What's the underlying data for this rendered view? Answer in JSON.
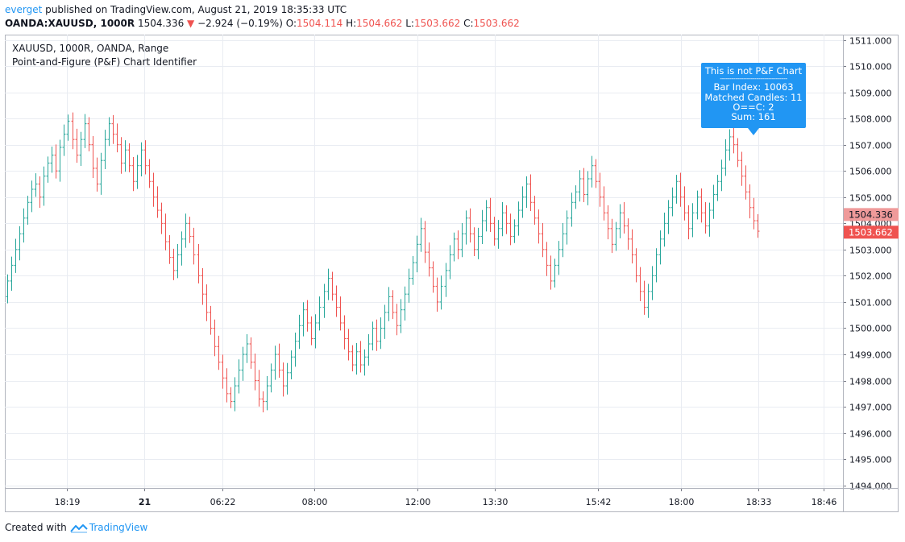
{
  "header": {
    "user": "everget",
    "published_text": " published on TradingView.com, August 21, 2019 18:35:33 UTC"
  },
  "ohlc": {
    "symbol": "OANDA:XAUUSD, 1000R",
    "last": "1504.336",
    "arrow": "▼",
    "change": "−2.924 (−0.19%)",
    "open_label": "O:",
    "open": "1504.114",
    "high_label": "H:",
    "high": "1504.662",
    "low_label": "L:",
    "low": "1503.662",
    "close_label": "C:",
    "close": "1503.662"
  },
  "chart_title": "XAUUSD, 1000R, OANDA, Range",
  "chart_subtitle": "Point-and-Figure (P&F) Chart Identifier",
  "tooltip": {
    "title": "This is not P&F Chart",
    "separator": "-----------------------------------",
    "bar_index": "Bar Index: 10063",
    "matched": "Matched Candles: 11",
    "oc": "O==C: 2",
    "sum": "Sum: 161"
  },
  "footer": {
    "created_with": "Created with",
    "brand": "TradingView"
  },
  "colors": {
    "up": "#26a69a",
    "down": "#ef5350",
    "accent": "#2196f3",
    "grid": "#e9ecf2"
  },
  "chart_data": {
    "type": "ohlc",
    "title": "XAUUSD, 1000R, OANDA, Range",
    "x_tick_labels": [
      "18:19",
      "21",
      "06:22",
      "08:00",
      "12:00",
      "13:30",
      "15:42",
      "18:00",
      "18:33",
      "18:46"
    ],
    "y_ticks": [
      1494.0,
      1495.0,
      1496.0,
      1497.0,
      1498.0,
      1499.0,
      1500.0,
      1501.0,
      1502.0,
      1503.0,
      1504.0,
      1505.0,
      1506.0,
      1507.0,
      1508.0,
      1509.0,
      1510.0,
      1511.0
    ],
    "ylim": [
      1493.9,
      1511.2
    ],
    "price_labels": [
      {
        "value": 1504.336,
        "label": "1504.336",
        "color": "#ef9a9a",
        "text_color": "#131722"
      },
      {
        "value": 1503.662,
        "label": "1503.662",
        "color": "#ef5350",
        "text_color": "#ffffff"
      }
    ],
    "grid": true,
    "close_path": [
      1501.8,
      1502.4,
      1503.0,
      1503.6,
      1504.2,
      1504.8,
      1505.3,
      1505.5,
      1505.0,
      1505.8,
      1506.3,
      1506.6,
      1506.0,
      1506.9,
      1507.4,
      1507.9,
      1507.2,
      1506.6,
      1507.2,
      1507.8,
      1507.0,
      1506.1,
      1505.5,
      1506.4,
      1507.2,
      1507.8,
      1507.4,
      1507.0,
      1506.3,
      1506.8,
      1506.2,
      1505.6,
      1506.2,
      1506.8,
      1506.2,
      1505.6,
      1505.0,
      1504.5,
      1504.0,
      1503.3,
      1502.7,
      1502.2,
      1502.8,
      1503.4,
      1504.0,
      1503.5,
      1502.8,
      1502.0,
      1501.3,
      1500.6,
      1500.0,
      1499.3,
      1498.7,
      1498.1,
      1497.5,
      1497.2,
      1497.8,
      1498.4,
      1499.0,
      1499.4,
      1498.7,
      1498.0,
      1497.3,
      1497.2,
      1497.8,
      1498.4,
      1499.0,
      1498.4,
      1497.8,
      1498.3,
      1498.9,
      1499.5,
      1500.1,
      1500.7,
      1500.2,
      1499.6,
      1500.2,
      1500.8,
      1501.4,
      1501.9,
      1501.3,
      1500.8,
      1500.2,
      1499.6,
      1499.1,
      1498.6,
      1499.1,
      1498.6,
      1498.9,
      1499.4,
      1500.0,
      1499.5,
      1500.0,
      1500.6,
      1501.2,
      1500.6,
      1500.1,
      1500.7,
      1501.3,
      1501.9,
      1502.5,
      1503.2,
      1503.8,
      1502.9,
      1502.3,
      1501.6,
      1501.0,
      1501.6,
      1502.2,
      1502.8,
      1503.4,
      1503.0,
      1503.6,
      1504.2,
      1503.6,
      1503.0,
      1503.5,
      1504.1,
      1504.6,
      1504.0,
      1503.4,
      1503.8,
      1504.4,
      1504.0,
      1503.5,
      1503.9,
      1504.5,
      1505.0,
      1505.5,
      1504.8,
      1504.2,
      1503.6,
      1503.0,
      1502.4,
      1501.8,
      1502.4,
      1503.0,
      1503.6,
      1504.2,
      1504.8,
      1505.2,
      1505.7,
      1505.1,
      1505.7,
      1506.2,
      1505.6,
      1505.0,
      1504.4,
      1503.8,
      1503.2,
      1503.8,
      1504.4,
      1503.9,
      1503.4,
      1502.8,
      1502.0,
      1501.4,
      1500.8,
      1501.4,
      1502.0,
      1502.8,
      1503.4,
      1504.0,
      1504.6,
      1505.0,
      1505.6,
      1505.0,
      1504.4,
      1503.8,
      1504.4,
      1505.0,
      1504.4,
      1503.9,
      1504.5,
      1505.1,
      1505.6,
      1506.1,
      1506.8,
      1507.3,
      1507.0,
      1506.4,
      1505.8,
      1505.2,
      1504.6,
      1504.1,
      1503.7
    ]
  }
}
